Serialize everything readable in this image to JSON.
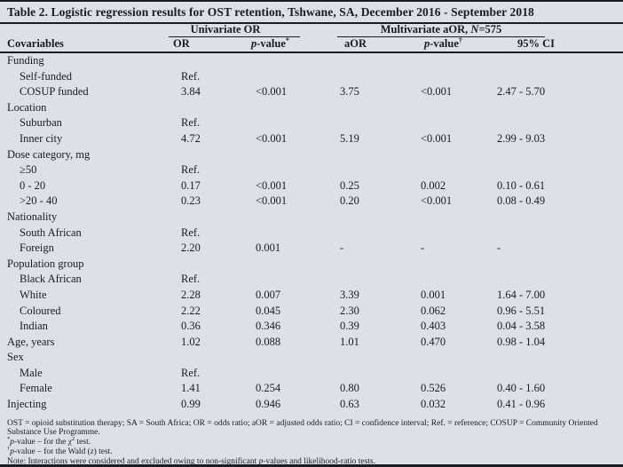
{
  "title": "Table 2. Logistic regression results for OST retention, Tshwane, SA, December 2016 - September 2018",
  "colors": {
    "background": "#dce1e9",
    "text": "#1a1a24",
    "rule": "#1b1b25"
  },
  "table": {
    "group_headers": {
      "univariate": "Univariate OR",
      "multivariate_prefix": "Multivariate aOR, ",
      "multivariate_n": "N",
      "multivariate_suffix": "=575"
    },
    "columns": {
      "covariables": "Covariables",
      "or": "OR",
      "p1_italic": "p",
      "p1_rest": "-value",
      "p1_mark": "*",
      "aor": "aOR",
      "p2_italic": "p",
      "p2_rest": "-value",
      "p2_mark": "†",
      "ci": "95% CI"
    },
    "rows": [
      {
        "label": "Funding",
        "indent": false,
        "or": "",
        "p1": "",
        "aor": "",
        "p2": "",
        "ci": ""
      },
      {
        "label": "Self-funded",
        "indent": true,
        "or": "Ref.",
        "p1": "",
        "aor": "",
        "p2": "",
        "ci": ""
      },
      {
        "label": "COSUP funded",
        "indent": true,
        "or": "3.84",
        "p1": "<0.001",
        "aor": "3.75",
        "p2": "<0.001",
        "ci": "2.47 - 5.70"
      },
      {
        "label": "Location",
        "indent": false,
        "or": "",
        "p1": "",
        "aor": "",
        "p2": "",
        "ci": ""
      },
      {
        "label": "Suburban",
        "indent": true,
        "or": "Ref.",
        "p1": "",
        "aor": "",
        "p2": "",
        "ci": ""
      },
      {
        "label": "Inner city",
        "indent": true,
        "or": "4.72",
        "p1": "<0.001",
        "aor": "5.19",
        "p2": "<0.001",
        "ci": "2.99 - 9.03"
      },
      {
        "label": "Dose category, mg",
        "indent": false,
        "or": "",
        "p1": "",
        "aor": "",
        "p2": "",
        "ci": ""
      },
      {
        "label": "≥50",
        "indent": true,
        "or": "Ref.",
        "p1": "",
        "aor": "",
        "p2": "",
        "ci": ""
      },
      {
        "label": "0 - 20",
        "indent": true,
        "or": "0.17",
        "p1": "<0.001",
        "aor": "0.25",
        "p2": "0.002",
        "ci": "0.10 - 0.61"
      },
      {
        "label": ">20 - 40",
        "indent": true,
        "or": "0.23",
        "p1": "<0.001",
        "aor": "0.20",
        "p2": "<0.001",
        "ci": "0.08 - 0.49"
      },
      {
        "label": "Nationality",
        "indent": false,
        "or": "",
        "p1": "",
        "aor": "",
        "p2": "",
        "ci": ""
      },
      {
        "label": "South African",
        "indent": true,
        "or": "Ref.",
        "p1": "",
        "aor": "",
        "p2": "",
        "ci": ""
      },
      {
        "label": "Foreign",
        "indent": true,
        "or": "2.20",
        "p1": "0.001",
        "aor": "-",
        "p2": "-",
        "ci": "-"
      },
      {
        "label": "Population group",
        "indent": false,
        "or": "",
        "p1": "",
        "aor": "",
        "p2": "",
        "ci": ""
      },
      {
        "label": "Black African",
        "indent": true,
        "or": "Ref.",
        "p1": "",
        "aor": "",
        "p2": "",
        "ci": ""
      },
      {
        "label": "White",
        "indent": true,
        "or": "2.28",
        "p1": "0.007",
        "aor": "3.39",
        "p2": "0.001",
        "ci": "1.64 - 7.00"
      },
      {
        "label": "Coloured",
        "indent": true,
        "or": "2.22",
        "p1": "0.045",
        "aor": "2.30",
        "p2": "0.062",
        "ci": "0.96 - 5.51"
      },
      {
        "label": "Indian",
        "indent": true,
        "or": "0.36",
        "p1": "0.346",
        "aor": "0.39",
        "p2": "0.403",
        "ci": "0.04 - 3.58"
      },
      {
        "label": "Age, years",
        "indent": false,
        "or": "1.02",
        "p1": "0.088",
        "aor": "1.01",
        "p2": "0.470",
        "ci": "0.98 - 1.04"
      },
      {
        "label": "Sex",
        "indent": false,
        "or": "",
        "p1": "",
        "aor": "",
        "p2": "",
        "ci": ""
      },
      {
        "label": "Male",
        "indent": true,
        "or": "Ref.",
        "p1": "",
        "aor": "",
        "p2": "",
        "ci": ""
      },
      {
        "label": "Female",
        "indent": true,
        "or": "1.41",
        "p1": "0.254",
        "aor": "0.80",
        "p2": "0.526",
        "ci": "0.40 - 1.60"
      },
      {
        "label": "Injecting",
        "indent": false,
        "or": "0.99",
        "p1": "0.946",
        "aor": "0.63",
        "p2": "0.032",
        "ci": "0.41 - 0.96"
      }
    ]
  },
  "footnotes": [
    [
      {
        "t": "OST = opioid substitution therapy; SA = South Africa; OR = odds ratio; aOR = adjusted odds ratio; CI = confidence interval; Ref. = reference; COSUP = Community Oriented Substance Use Programme."
      }
    ],
    [
      {
        "t": "*",
        "s": "sup"
      },
      {
        "t": "p",
        "s": "i"
      },
      {
        "t": "-value – for the χ"
      },
      {
        "t": "2",
        "s": "sup"
      },
      {
        "t": " test."
      }
    ],
    [
      {
        "t": "†",
        "s": "sup"
      },
      {
        "t": "p",
        "s": "i"
      },
      {
        "t": "-value – for the Wald ("
      },
      {
        "t": "z",
        "s": "i"
      },
      {
        "t": ") test."
      }
    ],
    [
      {
        "t": "Note: Interactions were considered and excluded owing to non-significant "
      },
      {
        "t": "p",
        "s": "i"
      },
      {
        "t": "-values and likelihood-ratio tests."
      }
    ]
  ]
}
